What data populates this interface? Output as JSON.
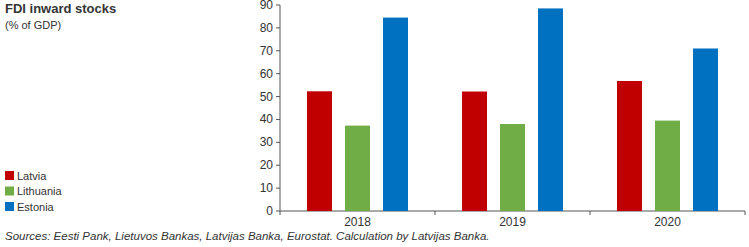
{
  "chart_data": {
    "type": "bar",
    "title": "FDI inward stocks",
    "subtitle": "(% of GDP)",
    "categories": [
      "2018",
      "2019",
      "2020"
    ],
    "series": [
      {
        "name": "Latvia",
        "color": "#c00000",
        "values": [
          52.3,
          52.2,
          56.8
        ]
      },
      {
        "name": "Lithuania",
        "color": "#70ad47",
        "values": [
          37.3,
          38.0,
          39.5
        ]
      },
      {
        "name": "Estonia",
        "color": "#0070c0",
        "values": [
          84.5,
          88.5,
          71.0
        ]
      }
    ],
    "ylim": [
      0,
      90
    ],
    "yticks": [
      0,
      10,
      20,
      30,
      40,
      50,
      60,
      70,
      80,
      90
    ],
    "grid": false,
    "legend": "left",
    "annotations": [
      "Sources: Eesti Pank, Lietuvos Bankas, Latvijas Banka, Eurostat. Calculation by Latvijas Banka."
    ]
  }
}
